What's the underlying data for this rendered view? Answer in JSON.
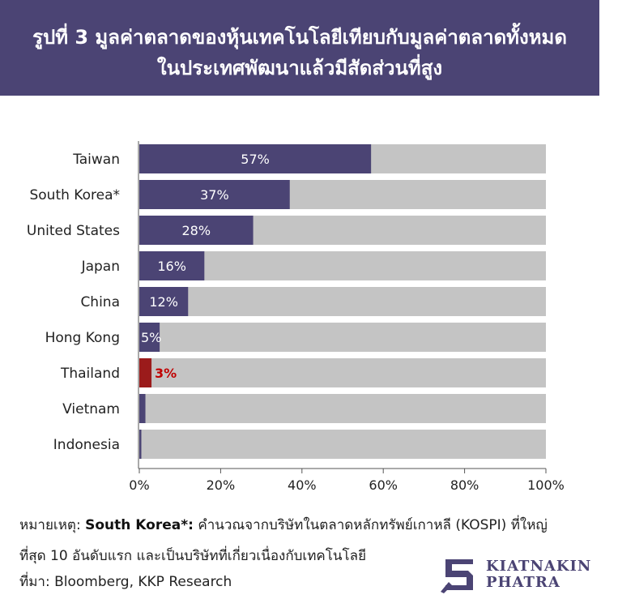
{
  "title": {
    "line1": "รูปที่ 3 มูลค่าตลาดของหุ้นเทคโนโลยีเทียบกับมูลค่าตลาดทั้งหมด",
    "line2": "ในประเทศพัฒนาแล้วมีสัดส่วนที่สูง"
  },
  "chart_data": {
    "type": "bar",
    "orientation": "horizontal",
    "stacked_to_100": true,
    "categories": [
      "Taiwan",
      "South Korea*",
      "United States",
      "Japan",
      "China",
      "Hong Kong",
      "Thailand",
      "Vietnam",
      "Indonesia"
    ],
    "values": [
      57,
      37,
      28,
      16,
      12,
      5,
      3,
      1.5,
      0.5
    ],
    "value_labels": [
      "57%",
      "37%",
      "28%",
      "16%",
      "12%",
      "5%",
      "3%",
      "",
      ""
    ],
    "highlight_category": "Thailand",
    "xlim": [
      0,
      100
    ],
    "x_ticks": [
      "0%",
      "20%",
      "40%",
      "60%",
      "80%",
      "100%"
    ],
    "grid": false,
    "colors": {
      "value": "#4b4474",
      "highlight": "#9b1b1b",
      "remainder": "#c4c4c4",
      "highlight_label": "#c00000"
    }
  },
  "notes": {
    "note_prefix": "หมายเหตุ:",
    "note_term": "South Korea*:",
    "note_text1": "คำนวณจากบริษัทในตลาดหลักทรัพย์เกาหลี (KOSPI) ที่ใหญ่",
    "note_text2": "ที่สุด 10 อันดับแรก และเป็นบริษัทที่เกี่ยวเนื่องกับเทคโนโลยี",
    "source": "ที่มา: Bloomberg, KKP Research"
  },
  "logo": {
    "line1": "KIATNAKIN",
    "line2": "PHATRA",
    "color": "#4b4474"
  }
}
